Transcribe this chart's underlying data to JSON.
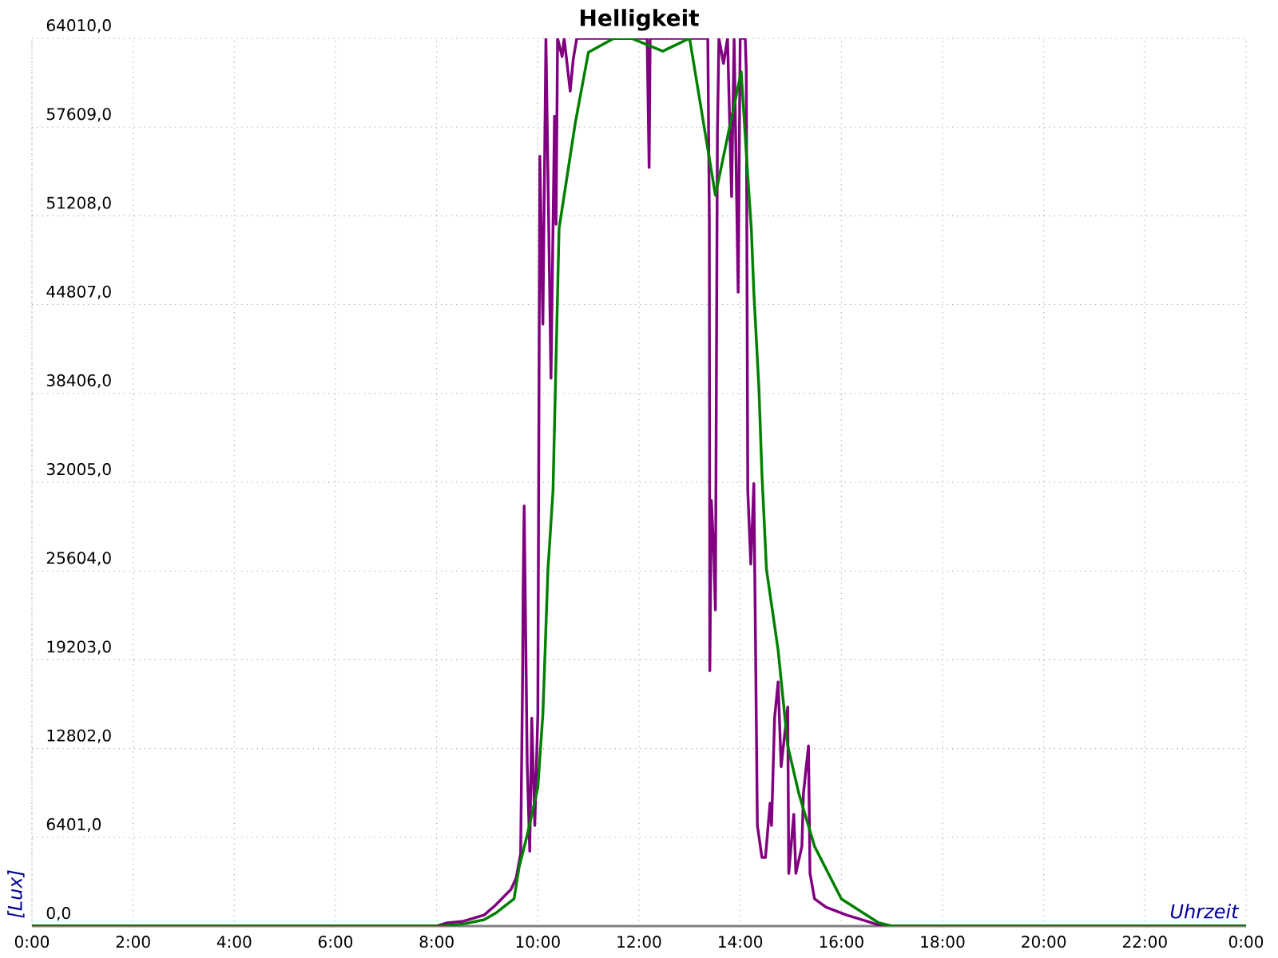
{
  "chart_data": {
    "type": "line",
    "title": "Helligkeit",
    "xlabel": "Uhrzeit",
    "ylabel": "[Lux]",
    "xlim": [
      0,
      24
    ],
    "ylim": [
      0,
      64010
    ],
    "xticks": [
      {
        "value": 0,
        "label": "0:00"
      },
      {
        "value": 2,
        "label": "2:00"
      },
      {
        "value": 4,
        "label": "4:00"
      },
      {
        "value": 6,
        "label": "6:00"
      },
      {
        "value": 8,
        "label": "8:00"
      },
      {
        "value": 10,
        "label": "10:00"
      },
      {
        "value": 12,
        "label": "12:00"
      },
      {
        "value": 14,
        "label": "14:00"
      },
      {
        "value": 16,
        "label": "16:00"
      },
      {
        "value": 18,
        "label": "18:00"
      },
      {
        "value": 20,
        "label": "20:00"
      },
      {
        "value": 22,
        "label": "22:00"
      },
      {
        "value": 24,
        "label": "0:00"
      }
    ],
    "yticks": [
      {
        "value": 0,
        "label": "0,0"
      },
      {
        "value": 6401,
        "label": "6401,0"
      },
      {
        "value": 12802,
        "label": "12802,0"
      },
      {
        "value": 19203,
        "label": "19203,0"
      },
      {
        "value": 25604,
        "label": "25604,0"
      },
      {
        "value": 32005,
        "label": "32005,0"
      },
      {
        "value": 38406,
        "label": "38406,0"
      },
      {
        "value": 44807,
        "label": "44807,0"
      },
      {
        "value": 51208,
        "label": "51208,0"
      },
      {
        "value": 57609,
        "label": "57609,0"
      },
      {
        "value": 64010,
        "label": "64010,0"
      }
    ],
    "grid": true,
    "marker": "none",
    "line_style": "solid",
    "series": [
      {
        "color": "#800080",
        "x": [
          0,
          8.0,
          8.21,
          8.53,
          8.94,
          9.16,
          9.47,
          9.57,
          9.66,
          9.7,
          9.71,
          9.73,
          9.79,
          9.84,
          9.88,
          9.94,
          10.0,
          10.04,
          10.1,
          10.16,
          10.26,
          10.33,
          10.36,
          10.39,
          10.48,
          10.52,
          10.64,
          10.7,
          10.77,
          12.16,
          12.2,
          12.22,
          13.36,
          13.39,
          13.4,
          13.43,
          13.48,
          13.51,
          13.55,
          13.58,
          13.67,
          13.75,
          13.83,
          13.88,
          13.96,
          14.0,
          14.1,
          14.12,
          14.15,
          14.21,
          14.27,
          14.3,
          14.34,
          14.43,
          14.5,
          14.59,
          14.62,
          14.68,
          14.75,
          14.81,
          14.94,
          14.96,
          15.06,
          15.1,
          15.22,
          15.25,
          15.35,
          15.38,
          15.47,
          15.69,
          16.1,
          16.5,
          16.8,
          24
        ],
        "values": [
          0,
          0,
          230,
          350,
          800,
          1500,
          2650,
          3450,
          5200,
          18400,
          24400,
          30300,
          11700,
          5400,
          15000,
          7250,
          15300,
          55500,
          43400,
          64010,
          39500,
          58400,
          50600,
          64010,
          62700,
          64010,
          60200,
          62500,
          64010,
          64010,
          54700,
          64010,
          64010,
          51000,
          18400,
          30700,
          26800,
          22800,
          57200,
          64010,
          62200,
          64010,
          52600,
          64010,
          45700,
          64010,
          64010,
          61800,
          31400,
          26100,
          31900,
          21500,
          7250,
          4950,
          4950,
          8860,
          7250,
          15000,
          17600,
          11500,
          15800,
          3800,
          8060,
          3800,
          5750,
          9550,
          13000,
          3800,
          1960,
          1380,
          800,
          350,
          0,
          0
        ]
      },
      {
        "color": "#008000",
        "x": [
          0,
          8.05,
          8.53,
          8.94,
          9.16,
          9.53,
          9.63,
          9.79,
          10.0,
          10.1,
          10.2,
          10.3,
          10.42,
          10.74,
          11.0,
          11.5,
          11.85,
          12.47,
          13.0,
          13.51,
          14.02,
          14.15,
          14.22,
          14.27,
          14.37,
          14.43,
          14.52,
          14.75,
          14.94,
          15.16,
          15.47,
          16.0,
          16.74,
          17.0,
          24
        ],
        "values": [
          0,
          0,
          150,
          460,
          920,
          1960,
          4260,
          6560,
          10000,
          15300,
          25700,
          31400,
          50300,
          57900,
          63000,
          64000,
          64010,
          63080,
          64010,
          52700,
          61600,
          54100,
          50300,
          45700,
          38800,
          32600,
          25700,
          19900,
          13000,
          9550,
          5750,
          1960,
          230,
          0,
          0
        ]
      }
    ]
  }
}
